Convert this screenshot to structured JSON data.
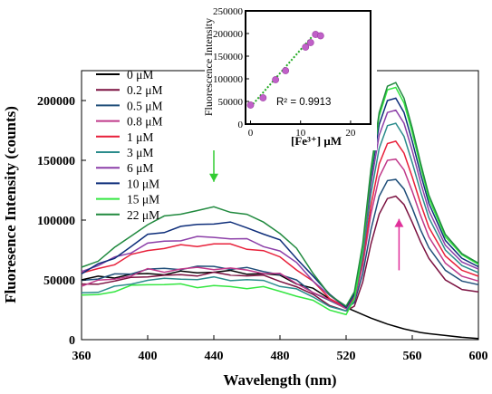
{
  "chart_data": [
    {
      "type": "line",
      "xlabel": "Wavelength  (nm)",
      "ylabel": "Fluoresence Intensity (counts)",
      "xlim": [
        360,
        600
      ],
      "ylim": [
        0,
        225000
      ],
      "xticks": [
        360,
        400,
        440,
        480,
        520,
        560,
        600
      ],
      "yticks": [
        0,
        50000,
        100000,
        150000,
        200000
      ],
      "x_tick_labels": [
        "360",
        "400",
        "440",
        "480",
        "520",
        "560",
        "600"
      ],
      "y_tick_labels": [
        "0",
        "50000",
        "100000",
        "150000",
        "200000"
      ],
      "grid": false,
      "legend_position": "top-left",
      "x": [
        360,
        370,
        380,
        390,
        400,
        410,
        420,
        430,
        440,
        450,
        460,
        470,
        480,
        490,
        500,
        510,
        520,
        525,
        530,
        535,
        540,
        545,
        550,
        555,
        560,
        565,
        570,
        580,
        590,
        600
      ],
      "series": [
        {
          "name": "0 μM",
          "color": "#000000",
          "values": [
            50000,
            52000,
            53000,
            54000,
            55000,
            55500,
            56000,
            56500,
            57000,
            56500,
            56000,
            55000,
            53000,
            48000,
            42000,
            34000,
            27000,
            24000,
            21000,
            18000,
            15500,
            13000,
            11000,
            9000,
            7500,
            6000,
            5000,
            3500,
            2000,
            1000
          ]
        },
        {
          "name": "0.2 μM",
          "color": "#7b1140",
          "values": [
            45000,
            47500,
            49000,
            51000,
            54000,
            53000,
            54000,
            54500,
            55000,
            54500,
            54000,
            52500,
            50000,
            44000,
            37000,
            30000,
            24000,
            28000,
            48000,
            80000,
            105000,
            118000,
            120000,
            113000,
            98000,
            82000,
            68000,
            50000,
            42000,
            40000
          ]
        },
        {
          "name": "0.5 μM",
          "color": "#1f4e79",
          "values": [
            50000,
            51500,
            53500,
            56000,
            59000,
            58500,
            60000,
            60500,
            61000,
            60000,
            59000,
            57500,
            55000,
            48500,
            40500,
            32500,
            26000,
            31000,
            55000,
            92000,
            120000,
            133000,
            134000,
            126000,
            110000,
            92000,
            77000,
            58000,
            49000,
            46000
          ]
        },
        {
          "name": "0.8 μM",
          "color": "#c0398a",
          "values": [
            46000,
            48500,
            51000,
            54000,
            58000,
            57500,
            59000,
            59500,
            60000,
            59000,
            58000,
            56500,
            54000,
            47500,
            40000,
            32000,
            26000,
            33000,
            62000,
            105000,
            136000,
            150000,
            151000,
            142000,
            124000,
            104000,
            86000,
            64000,
            53000,
            49000
          ]
        },
        {
          "name": "1 μM",
          "color": "#e8203a",
          "values": [
            55000,
            59000,
            64000,
            70000,
            75000,
            77000,
            78000,
            79000,
            80000,
            79000,
            77000,
            73500,
            69000,
            59500,
            47500,
            35000,
            27000,
            35000,
            66000,
            112000,
            147000,
            164000,
            166000,
            156000,
            136000,
            114000,
            94000,
            70000,
            58000,
            53000
          ]
        },
        {
          "name": "3 μM",
          "color": "#2b8c8c",
          "values": [
            38000,
            41000,
            44000,
            46000,
            51000,
            50000,
            51000,
            51000,
            51000,
            50500,
            50000,
            48500,
            46000,
            41500,
            35500,
            29000,
            24000,
            34000,
            70000,
            122000,
            160000,
            179000,
            181000,
            170000,
            148000,
            124000,
            102000,
            75000,
            62000,
            56000
          ]
        },
        {
          "name": "6 μM",
          "color": "#8c3fa8",
          "values": [
            58000,
            62000,
            68000,
            74000,
            80000,
            82000,
            84000,
            85000,
            86000,
            85000,
            83000,
            79000,
            74000,
            63500,
            50500,
            36000,
            27000,
            37000,
            74000,
            130000,
            171000,
            190000,
            192000,
            181000,
            158000,
            132000,
            108000,
            79000,
            65000,
            59000
          ]
        },
        {
          "name": "10 μM",
          "color": "#0e2e7a",
          "values": [
            56000,
            62000,
            69000,
            78000,
            87000,
            91000,
            94000,
            96000,
            98000,
            97000,
            94000,
            89000,
            82000,
            69000,
            53000,
            37000,
            27000,
            38000,
            77000,
            136000,
            180000,
            200000,
            202000,
            190000,
            166000,
            139000,
            114000,
            83000,
            68000,
            61000
          ]
        },
        {
          "name": "15 μM",
          "color": "#33e640",
          "values": [
            36000,
            38000,
            41000,
            44000,
            47000,
            46000,
            45500,
            45000,
            44500,
            44000,
            44000,
            43000,
            41000,
            37000,
            31500,
            26000,
            21000,
            34000,
            76000,
            140000,
            187000,
            209000,
            211000,
            198000,
            173000,
            145000,
            118000,
            86000,
            71000,
            63000
          ]
        },
        {
          "name": "22 μM",
          "color": "#218a3f",
          "values": [
            60000,
            67000,
            76000,
            87000,
            97000,
            102000,
            106000,
            108000,
            110000,
            108000,
            104000,
            98000,
            90000,
            75000,
            56000,
            38000,
            28000,
            40000,
            80000,
            143000,
            190000,
            212000,
            215000,
            202000,
            177000,
            148000,
            121000,
            88000,
            72000,
            64000
          ]
        }
      ],
      "annotations": [
        {
          "type": "arrow",
          "direction": "down",
          "color": "#33cc33",
          "x": 440,
          "y_from": 165000,
          "y_to": 132000
        },
        {
          "type": "arrow",
          "direction": "up",
          "color": "#e0309a",
          "x": 552,
          "y_from": 58000,
          "y_to": 101000
        }
      ]
    },
    {
      "type": "scatter",
      "xlabel": "[Fe³⁺] μM",
      "ylabel": "Fluorescence Intensity",
      "xlim": [
        -1,
        24
      ],
      "ylim": [
        0,
        250000
      ],
      "xticks": [
        0,
        10,
        20
      ],
      "yticks": [
        0,
        50000,
        100000,
        150000,
        200000,
        250000
      ],
      "x_tick_labels": [
        "0",
        "10",
        "20"
      ],
      "y_tick_labels": [
        "0",
        "50000",
        "100000",
        "150000",
        "200000",
        "250000"
      ],
      "grid": false,
      "marker_color": "#c060c8",
      "trendline_color": "#22aa22",
      "x": [
        0,
        2.5,
        5,
        7,
        11,
        12,
        13,
        14
      ],
      "y": [
        42000,
        58000,
        98000,
        118000,
        170000,
        180000,
        198000,
        195000
      ],
      "trendline": {
        "x": [
          0,
          13
        ],
        "y": [
          38000,
          202000
        ]
      },
      "r2_label": "R² = 0.9913"
    }
  ]
}
